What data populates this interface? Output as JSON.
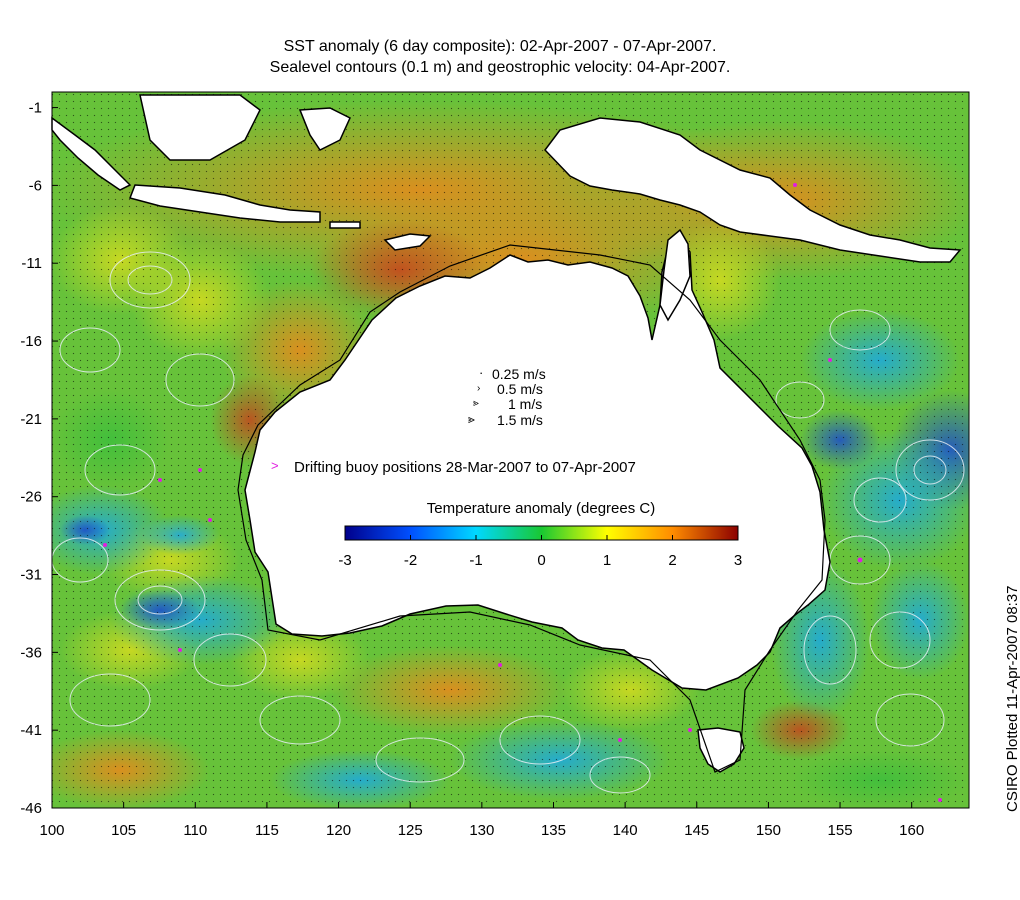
{
  "header": {
    "title_line1": "SST anomaly (6 day composite): 02-Apr-2007 - 07-Apr-2007.",
    "title_line2": "Sealevel contours (0.1 m) and geostrophic velocity: 04-Apr-2007."
  },
  "map": {
    "lon_ticks": [
      "100",
      "105",
      "110",
      "115",
      "120",
      "125",
      "130",
      "135",
      "140",
      "145",
      "150",
      "155",
      "160"
    ],
    "lat_ticks": [
      "-1",
      "-6",
      "-11",
      "-16",
      "-21",
      "-26",
      "-31",
      "-36",
      "-41",
      "-46"
    ],
    "lon_range": [
      100,
      164
    ],
    "lat_range": [
      -46,
      0
    ],
    "land_color": "#ffffff",
    "coastline_color": "#000000",
    "contour_color": "#dfe8f0",
    "buoy_color": "#e01ee0",
    "anomaly_regions": [
      {
        "name": "tropical-north",
        "anomaly": 1.7
      },
      {
        "name": "nw-shelf",
        "anomaly": 2.2
      },
      {
        "name": "indian-ocean-west",
        "anomaly": -0.5
      },
      {
        "name": "indian-ocean-cold-eddy",
        "anomaly": -1.7
      },
      {
        "name": "great-australian-bight",
        "anomaly": 1.4
      },
      {
        "name": "tasman-sea",
        "anomaly": -1.0
      },
      {
        "name": "coral-sea",
        "anomaly": -0.4
      }
    ]
  },
  "legend": {
    "speeds": [
      {
        "marker": "·",
        "label": "0.25 m/s"
      },
      {
        "marker": "›",
        "label": "0.5 m/s"
      },
      {
        "marker": "⪢",
        "label": "1 m/s"
      },
      {
        "marker": "⪢",
        "label": "1.5 m/s"
      }
    ],
    "buoy_marker": ">",
    "buoy_label": "Drifting buoy positions 28-Mar-2007 to 07-Apr-2007",
    "colorbar_title": "Temperature anomaly (degrees C)",
    "colorbar_ticks": [
      "-3",
      "-2",
      "-1",
      "0",
      "1",
      "2",
      "3"
    ],
    "colorbar_range": [
      -3,
      3
    ],
    "colorbar_stops": [
      "#00008c",
      "#0050ff",
      "#00d8ff",
      "#19c832",
      "#ffff00",
      "#ff8c00",
      "#8c0000"
    ]
  },
  "credit": "CSIRO Plotted 11-Apr-2007 08:37"
}
